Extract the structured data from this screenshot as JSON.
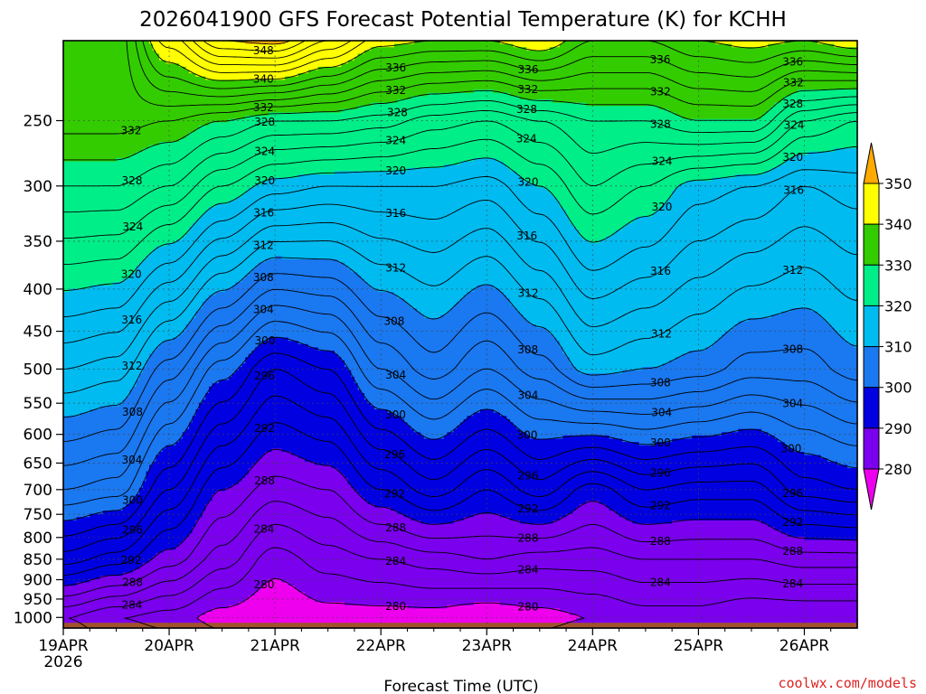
{
  "chart_data": {
    "type": "contour",
    "title": "2026041900 GFS Forecast Potential Temperature (K) for KCHH",
    "xlabel": "Forecast Time (UTC)",
    "ylabel": "",
    "watermark": "coolwx.com/models",
    "x_range_hours": [
      0,
      180
    ],
    "x_ticks": [
      {
        "hour": 0,
        "label": "19APR",
        "sublabel": "2026"
      },
      {
        "hour": 24,
        "label": "20APR"
      },
      {
        "hour": 48,
        "label": "21APR"
      },
      {
        "hour": 72,
        "label": "22APR"
      },
      {
        "hour": 96,
        "label": "23APR"
      },
      {
        "hour": 120,
        "label": "24APR"
      },
      {
        "hour": 144,
        "label": "25APR"
      },
      {
        "hour": 168,
        "label": "26APR"
      }
    ],
    "y_axis": "pressure (hPa), inverted log scale",
    "y_range": [
      1030,
      200
    ],
    "y_ticks": [
      250,
      300,
      350,
      400,
      450,
      500,
      550,
      600,
      650,
      700,
      750,
      800,
      850,
      900,
      950,
      1000
    ],
    "colorbar": {
      "labels": [
        350,
        340,
        330,
        320,
        310,
        300,
        290,
        280
      ],
      "bands": [
        {
          "low": 340,
          "high": 350,
          "color": "#ffff00"
        },
        {
          "low": 330,
          "high": 340,
          "color": "#33cc00"
        },
        {
          "low": 320,
          "high": 330,
          "color": "#00ee88"
        },
        {
          "low": 310,
          "high": 320,
          "color": "#00bbf0"
        },
        {
          "low": 300,
          "high": 310,
          "color": "#1a78f0"
        },
        {
          "low": 290,
          "high": 300,
          "color": "#0000e0"
        },
        {
          "low": 280,
          "high": 290,
          "color": "#7a00ee"
        }
      ],
      "above_color": "#ffaa00",
      "below_color": "#ee00ee"
    },
    "contour_interval_K": 2,
    "min_level_K": 278,
    "max_level_K": 350,
    "series": [
      {
        "name": "theta_1000hPa",
        "x": [
          0,
          12,
          24,
          36,
          48,
          60,
          72,
          84,
          96,
          108,
          120,
          132,
          144,
          156,
          168,
          180
        ],
        "values": [
          284,
          282,
          281,
          279,
          278,
          279,
          279,
          279,
          278,
          279,
          280,
          281,
          281,
          280,
          280,
          280
        ]
      },
      {
        "name": "theta_850hPa",
        "x": [
          0,
          12,
          24,
          36,
          48,
          60,
          72,
          84,
          96,
          108,
          120,
          132,
          144,
          156,
          168,
          180
        ],
        "values": [
          295,
          293,
          289,
          285,
          281,
          283,
          284,
          285,
          286,
          285,
          285,
          286,
          286,
          286,
          287,
          287
        ]
      },
      {
        "name": "theta_700hPa",
        "x": [
          0,
          12,
          24,
          36,
          48,
          60,
          72,
          84,
          96,
          108,
          120,
          132,
          144,
          156,
          168,
          180
        ],
        "values": [
          304,
          303,
          296,
          290,
          287,
          288,
          292,
          295,
          292,
          295,
          291,
          294,
          293,
          293,
          297,
          298
        ]
      },
      {
        "name": "theta_500hPa",
        "x": [
          0,
          12,
          24,
          36,
          48,
          60,
          72,
          84,
          96,
          108,
          120,
          132,
          144,
          156,
          168,
          180
        ],
        "values": [
          314,
          313,
          307,
          301,
          296,
          298,
          304,
          307,
          304,
          307,
          311,
          310,
          309,
          307,
          307,
          309
        ]
      },
      {
        "name": "theta_300hPa",
        "x": [
          0,
          12,
          24,
          36,
          48,
          60,
          72,
          84,
          96,
          108,
          120,
          132,
          144,
          156,
          168,
          180
        ],
        "values": [
          328,
          328,
          326,
          322,
          319,
          318,
          318,
          318,
          317,
          320,
          324,
          322,
          319,
          318,
          316,
          317
        ]
      },
      {
        "name": "theta_250hPa",
        "x": [
          0,
          12,
          24,
          36,
          48,
          60,
          72,
          84,
          96,
          108,
          120,
          132,
          144,
          156,
          168,
          180
        ],
        "values": [
          333,
          333,
          332,
          330,
          328,
          328,
          327,
          325,
          324,
          326,
          328,
          328,
          330,
          330,
          324,
          322
        ]
      },
      {
        "name": "theta_200hPa",
        "x": [
          0,
          12,
          24,
          36,
          48,
          60,
          72,
          84,
          96,
          108,
          120,
          132,
          144,
          156,
          168,
          180
        ],
        "values": [
          333,
          333,
          343,
          350,
          351,
          346,
          341,
          340,
          340,
          342,
          338,
          338,
          340,
          341,
          340,
          342
        ]
      }
    ]
  }
}
